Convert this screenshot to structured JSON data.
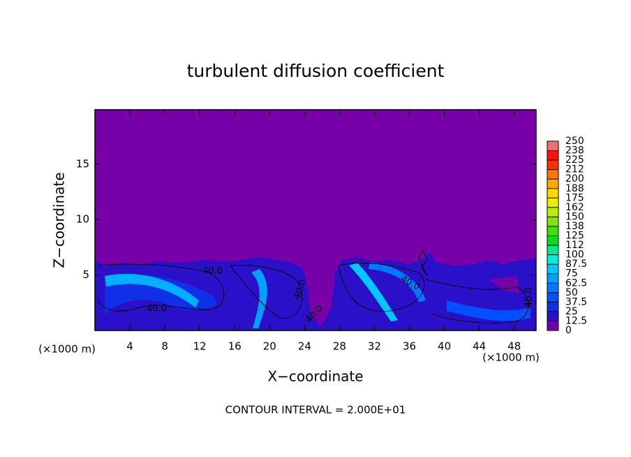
{
  "chart_data": {
    "type": "contour",
    "title": "turbulent diffusion coefficient",
    "xlabel": "X−coordinate",
    "ylabel": "Z−coordinate",
    "x_unit": "(×1000 m)",
    "xlim": [
      0,
      50.5
    ],
    "ylim": [
      0,
      19.9
    ],
    "xticks": [
      4,
      8,
      12,
      16,
      20,
      24,
      28,
      32,
      36,
      40,
      44,
      48
    ],
    "yticks": [
      5,
      10,
      15
    ],
    "contour_labels": [
      "40.0",
      "40.0",
      "40.0",
      "40.0",
      "40.0",
      "40.0"
    ],
    "footer": "CONTOUR INTERVAL = 2.000E+01",
    "colorbar": {
      "levels": [
        0,
        12.5,
        25,
        37.5,
        50,
        62.5,
        75,
        87.5,
        100,
        {
          "value": 112.5,
          "label": "112"
        },
        125,
        {
          "value": 137.5,
          "label": "138"
        },
        150,
        {
          "value": 162.5,
          "label": "162"
        },
        175,
        {
          "value": 187.5,
          "label": "188"
        },
        200,
        {
          "value": 212.5,
          "label": "212"
        },
        225,
        {
          "value": 237.5,
          "label": "238"
        },
        250
      ],
      "colors": [
        "#7800a8",
        "#2a10c8",
        "#1030e8",
        "#0050ff",
        "#0078ff",
        "#00a0ff",
        "#00c8ff",
        "#00f0e0",
        "#00e890",
        "#10d820",
        "#40e000",
        "#80e800",
        "#b8f000",
        "#e8f000",
        "#ffd800",
        "#ffa800",
        "#ff7800",
        "#ff3000",
        "#ff1010",
        "#f07070"
      ]
    }
  }
}
